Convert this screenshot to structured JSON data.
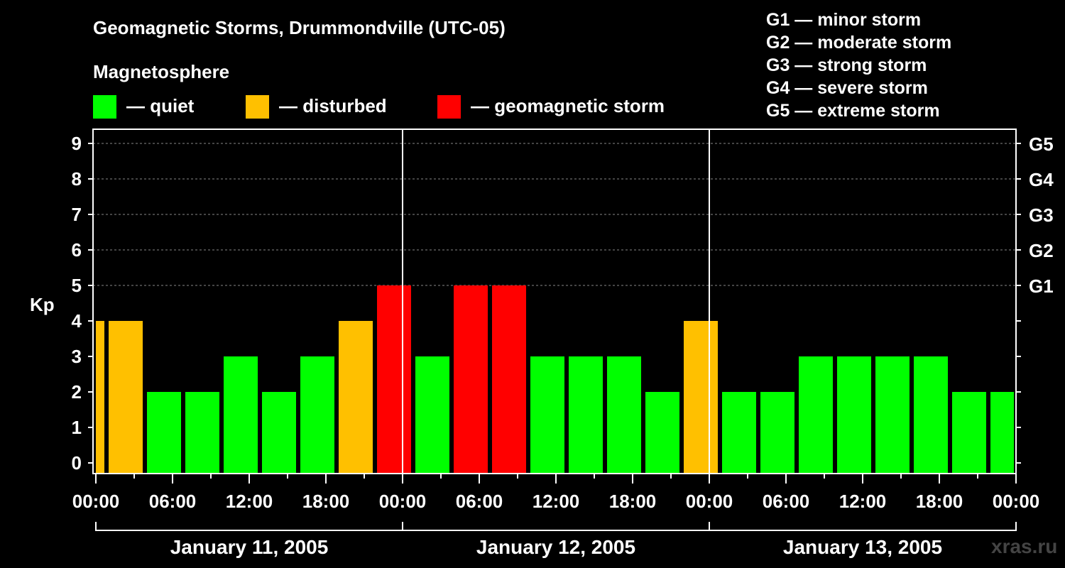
{
  "chart_data": {
    "type": "bar",
    "title": "Geomagnetic Storms, Drummondville (UTC-05)",
    "subtitle": "Magnetosphere",
    "ylabel": "Kp",
    "ylim": [
      0,
      9
    ],
    "yticks": [
      "0",
      "1",
      "2",
      "3",
      "4",
      "5",
      "6",
      "7",
      "8",
      "9"
    ],
    "gscale": [
      {
        "kp": 5,
        "label": "G1"
      },
      {
        "kp": 6,
        "label": "G2"
      },
      {
        "kp": 7,
        "label": "G3"
      },
      {
        "kp": 8,
        "label": "G4"
      },
      {
        "kp": 9,
        "label": "G5"
      }
    ],
    "x_tick_labels": [
      "00:00",
      "06:00",
      "12:00",
      "18:00",
      "00:00",
      "06:00",
      "12:00",
      "18:00",
      "00:00",
      "06:00",
      "12:00",
      "18:00",
      "00:00"
    ],
    "x_range_hours": [
      0,
      72
    ],
    "bar_interval_hours": 3,
    "bar_start_hour": -2,
    "days": [
      "January 11, 2005",
      "January 12, 2005",
      "January 13, 2005"
    ],
    "values": [
      4,
      4,
      2,
      2,
      3,
      2,
      3,
      4,
      5,
      3,
      5,
      5,
      3,
      3,
      3,
      2,
      4,
      2,
      2,
      3,
      3,
      3,
      3,
      2,
      2
    ],
    "levels": [
      {
        "label": "— quiet",
        "color": "#00ff00",
        "range": "Kp < 4"
      },
      {
        "label": "— disturbed",
        "color": "#ffc000",
        "range": "Kp = 4"
      },
      {
        "label": "— geomagnetic storm",
        "color": "#ff0000",
        "range": "Kp ≥ 5"
      }
    ],
    "storm_legend": [
      "G1 — minor storm",
      "G2 — moderate storm",
      "G3 — strong storm",
      "G4 — severe storm",
      "G5 — extreme storm"
    ]
  },
  "watermark": "xras.ru"
}
